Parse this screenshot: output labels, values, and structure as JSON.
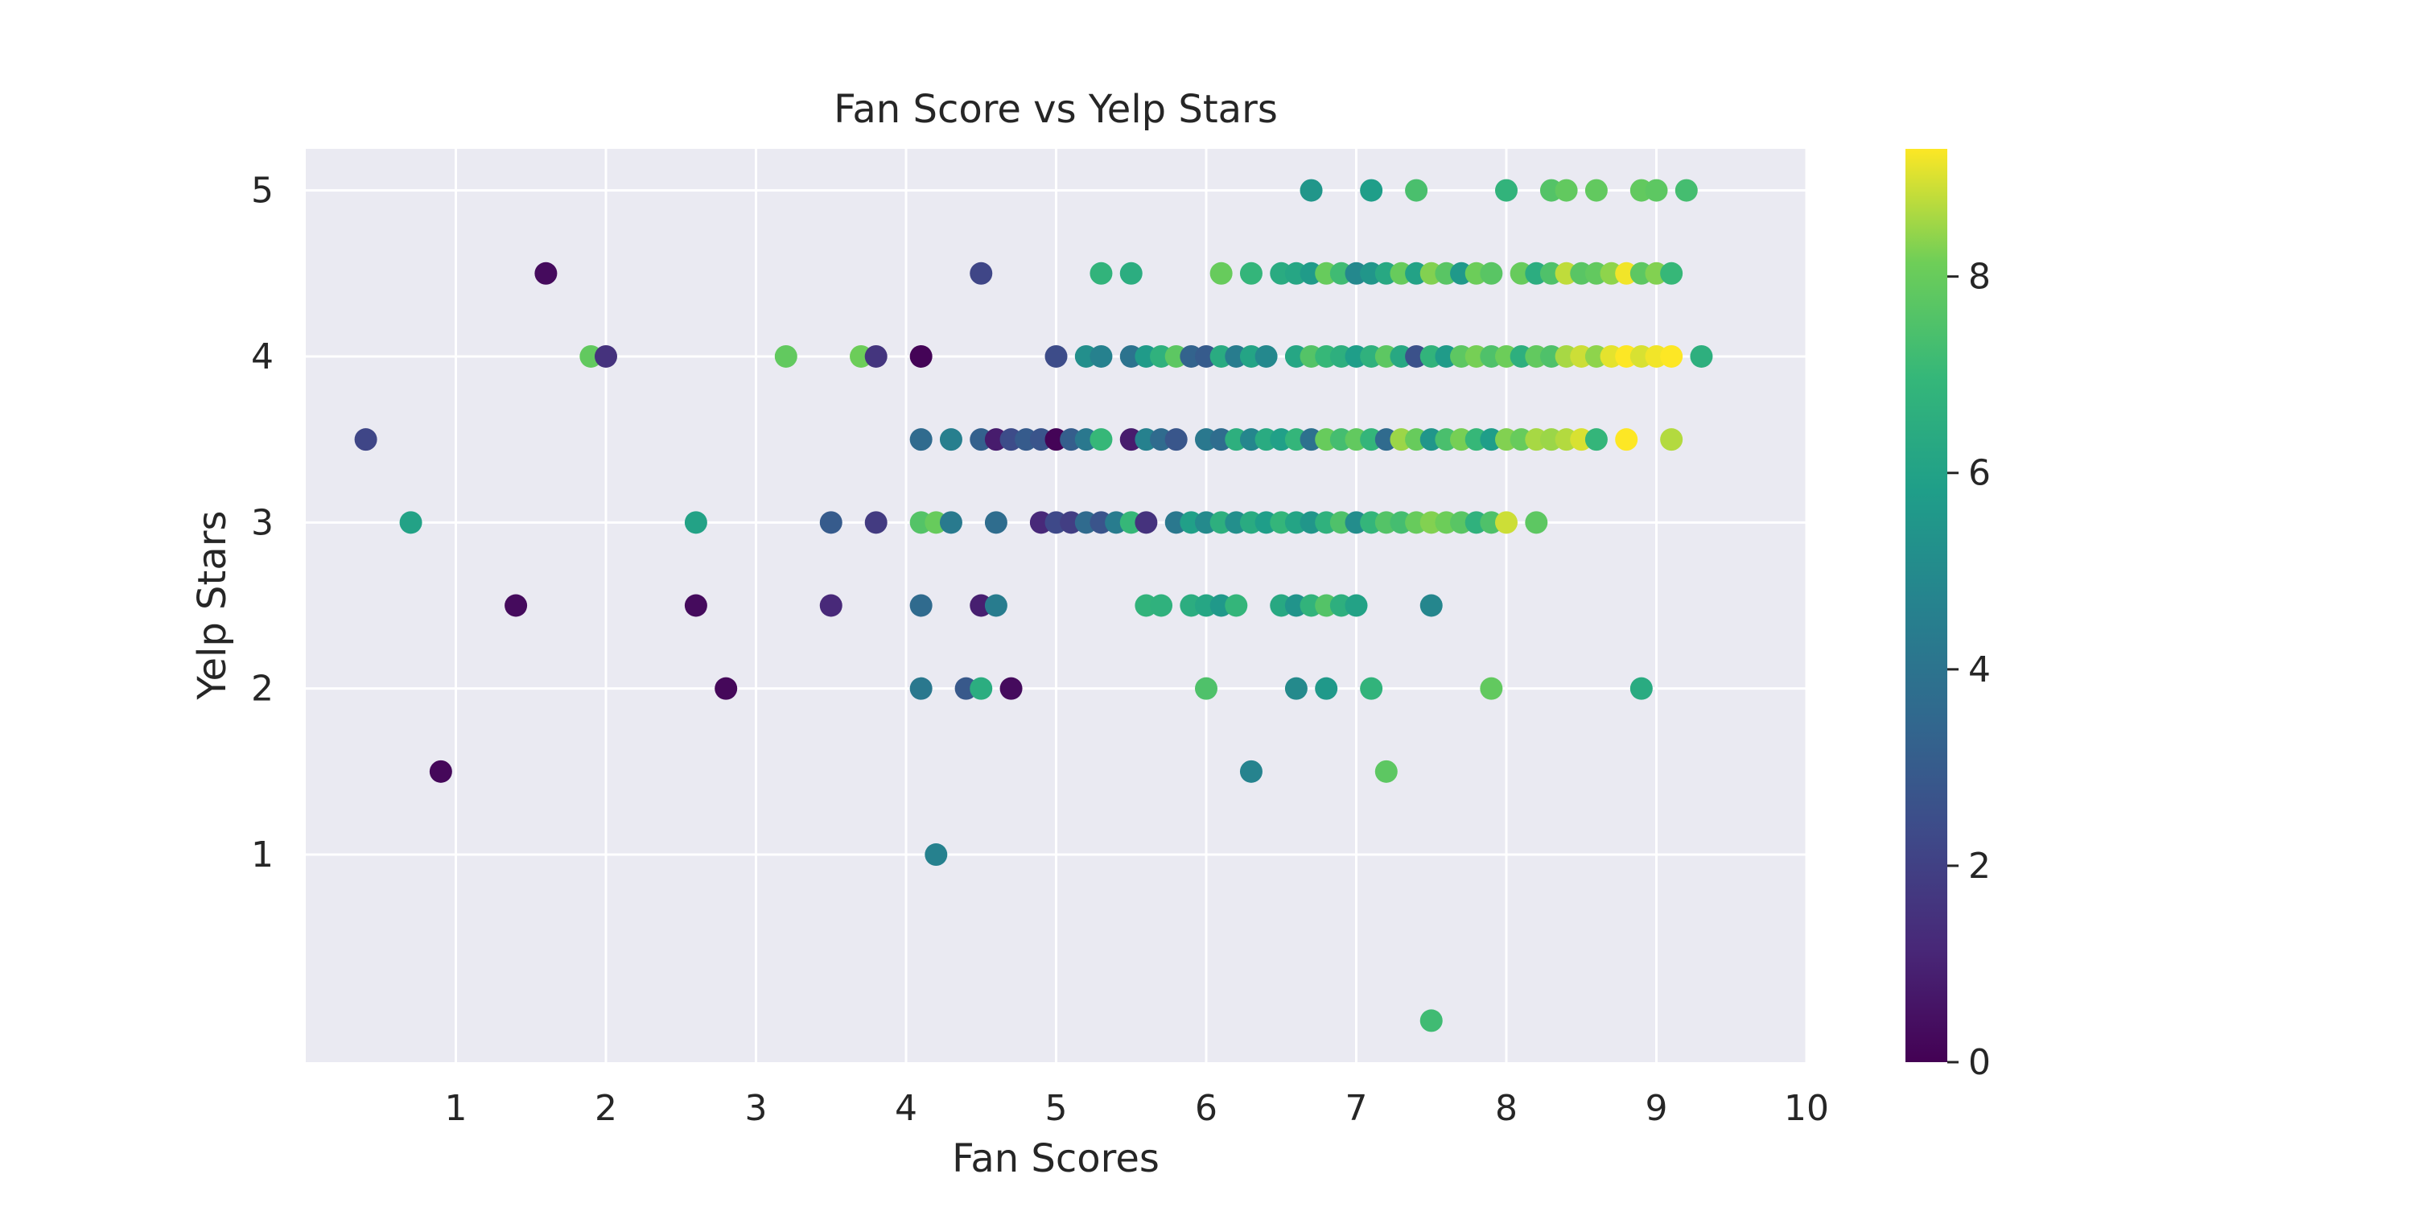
{
  "chart_data": {
    "type": "scatter",
    "title": "Fan Score vs Yelp Stars",
    "xlabel": "Fan Scores",
    "ylabel": "Yelp Stars",
    "xlim": [
      0,
      10
    ],
    "ylim": [
      -0.25,
      5.25
    ],
    "xticks": [
      1,
      2,
      3,
      4,
      5,
      6,
      7,
      8,
      9,
      10
    ],
    "yticks": [
      1,
      2,
      3,
      4,
      5
    ],
    "grid": true,
    "colormap": "viridis",
    "colorbar": {
      "range": [
        0,
        9.3
      ],
      "ticks": [
        0,
        2,
        4,
        6,
        8
      ]
    },
    "points": [
      {
        "x": 6.7,
        "y": 5,
        "c": 5.5
      },
      {
        "x": 7.1,
        "y": 5,
        "c": 5.8
      },
      {
        "x": 7.4,
        "y": 5,
        "c": 7.4
      },
      {
        "x": 8.0,
        "y": 5,
        "c": 6.8
      },
      {
        "x": 8.3,
        "y": 5,
        "c": 7.6
      },
      {
        "x": 8.4,
        "y": 5,
        "c": 7.9
      },
      {
        "x": 8.6,
        "y": 5,
        "c": 7.9
      },
      {
        "x": 8.9,
        "y": 5,
        "c": 7.9
      },
      {
        "x": 9.0,
        "y": 5,
        "c": 7.8
      },
      {
        "x": 9.2,
        "y": 5,
        "c": 7.3
      },
      {
        "x": 1.6,
        "y": 4.5,
        "c": 0.3
      },
      {
        "x": 4.5,
        "y": 4.5,
        "c": 2.2
      },
      {
        "x": 5.3,
        "y": 4.5,
        "c": 6.8
      },
      {
        "x": 5.5,
        "y": 4.5,
        "c": 6.5
      },
      {
        "x": 6.1,
        "y": 4.5,
        "c": 8.0
      },
      {
        "x": 6.3,
        "y": 4.5,
        "c": 6.9
      },
      {
        "x": 6.5,
        "y": 4.5,
        "c": 6.4
      },
      {
        "x": 6.6,
        "y": 4.5,
        "c": 6.2
      },
      {
        "x": 6.7,
        "y": 4.5,
        "c": 5.7
      },
      {
        "x": 6.8,
        "y": 4.5,
        "c": 8.0
      },
      {
        "x": 6.9,
        "y": 4.5,
        "c": 7.2
      },
      {
        "x": 7.0,
        "y": 4.5,
        "c": 4.9
      },
      {
        "x": 7.1,
        "y": 4.5,
        "c": 5.5
      },
      {
        "x": 7.2,
        "y": 4.5,
        "c": 6.3
      },
      {
        "x": 7.3,
        "y": 4.5,
        "c": 8.0
      },
      {
        "x": 7.4,
        "y": 4.5,
        "c": 6.0
      },
      {
        "x": 7.5,
        "y": 4.5,
        "c": 8.3
      },
      {
        "x": 7.6,
        "y": 4.5,
        "c": 7.7
      },
      {
        "x": 7.7,
        "y": 4.5,
        "c": 5.6
      },
      {
        "x": 7.8,
        "y": 4.5,
        "c": 8.1
      },
      {
        "x": 7.9,
        "y": 4.5,
        "c": 7.7
      },
      {
        "x": 8.1,
        "y": 4.5,
        "c": 8.0
      },
      {
        "x": 8.2,
        "y": 4.5,
        "c": 6.5
      },
      {
        "x": 8.3,
        "y": 4.5,
        "c": 7.5
      },
      {
        "x": 8.4,
        "y": 4.5,
        "c": 8.8
      },
      {
        "x": 8.5,
        "y": 4.5,
        "c": 7.7
      },
      {
        "x": 8.6,
        "y": 4.5,
        "c": 7.9
      },
      {
        "x": 8.7,
        "y": 4.5,
        "c": 8.4
      },
      {
        "x": 8.8,
        "y": 4.5,
        "c": 9.2
      },
      {
        "x": 8.9,
        "y": 4.5,
        "c": 7.8
      },
      {
        "x": 9.0,
        "y": 4.5,
        "c": 8.3
      },
      {
        "x": 9.1,
        "y": 4.5,
        "c": 7.0
      },
      {
        "x": 1.9,
        "y": 4,
        "c": 7.9
      },
      {
        "x": 2.0,
        "y": 4,
        "c": 1.5
      },
      {
        "x": 3.2,
        "y": 4,
        "c": 7.9
      },
      {
        "x": 3.7,
        "y": 4,
        "c": 8.1
      },
      {
        "x": 3.8,
        "y": 4,
        "c": 1.6
      },
      {
        "x": 4.1,
        "y": 4,
        "c": 0.1
      },
      {
        "x": 5.0,
        "y": 4,
        "c": 2.4
      },
      {
        "x": 5.2,
        "y": 4,
        "c": 5.2
      },
      {
        "x": 5.3,
        "y": 4,
        "c": 4.6
      },
      {
        "x": 5.5,
        "y": 4,
        "c": 4.0
      },
      {
        "x": 5.6,
        "y": 4,
        "c": 5.7
      },
      {
        "x": 5.7,
        "y": 4,
        "c": 6.7
      },
      {
        "x": 5.8,
        "y": 4,
        "c": 7.8
      },
      {
        "x": 5.9,
        "y": 4,
        "c": 3.3
      },
      {
        "x": 6.0,
        "y": 4,
        "c": 3.0
      },
      {
        "x": 6.1,
        "y": 4,
        "c": 6.4
      },
      {
        "x": 6.2,
        "y": 4,
        "c": 4.4
      },
      {
        "x": 6.3,
        "y": 4,
        "c": 6.1
      },
      {
        "x": 6.4,
        "y": 4,
        "c": 4.9
      },
      {
        "x": 6.6,
        "y": 4,
        "c": 6.2
      },
      {
        "x": 6.7,
        "y": 4,
        "c": 7.6
      },
      {
        "x": 6.8,
        "y": 4,
        "c": 7.0
      },
      {
        "x": 6.9,
        "y": 4,
        "c": 6.6
      },
      {
        "x": 7.0,
        "y": 4,
        "c": 5.8
      },
      {
        "x": 7.1,
        "y": 4,
        "c": 6.7
      },
      {
        "x": 7.2,
        "y": 4,
        "c": 7.8
      },
      {
        "x": 7.3,
        "y": 4,
        "c": 6.3
      },
      {
        "x": 7.4,
        "y": 4,
        "c": 2.6
      },
      {
        "x": 7.5,
        "y": 4,
        "c": 6.8
      },
      {
        "x": 7.6,
        "y": 4,
        "c": 5.7
      },
      {
        "x": 7.7,
        "y": 4,
        "c": 7.8
      },
      {
        "x": 7.8,
        "y": 4,
        "c": 8.2
      },
      {
        "x": 7.9,
        "y": 4,
        "c": 7.5
      },
      {
        "x": 8.0,
        "y": 4,
        "c": 8.1
      },
      {
        "x": 8.1,
        "y": 4,
        "c": 6.6
      },
      {
        "x": 8.2,
        "y": 4,
        "c": 7.9
      },
      {
        "x": 8.3,
        "y": 4,
        "c": 7.5
      },
      {
        "x": 8.4,
        "y": 4,
        "c": 8.6
      },
      {
        "x": 8.5,
        "y": 4,
        "c": 8.9
      },
      {
        "x": 8.6,
        "y": 4,
        "c": 8.4
      },
      {
        "x": 8.7,
        "y": 4,
        "c": 9.1
      },
      {
        "x": 8.8,
        "y": 4,
        "c": 9.3
      },
      {
        "x": 8.9,
        "y": 4,
        "c": 9.0
      },
      {
        "x": 9.0,
        "y": 4,
        "c": 9.2
      },
      {
        "x": 9.1,
        "y": 4,
        "c": 9.3
      },
      {
        "x": 9.3,
        "y": 4,
        "c": 6.6
      },
      {
        "x": 0.4,
        "y": 3.5,
        "c": 2.2
      },
      {
        "x": 4.1,
        "y": 3.5,
        "c": 3.6
      },
      {
        "x": 4.3,
        "y": 3.5,
        "c": 4.5
      },
      {
        "x": 4.5,
        "y": 3.5,
        "c": 3.2
      },
      {
        "x": 4.6,
        "y": 3.5,
        "c": 0.8
      },
      {
        "x": 4.7,
        "y": 3.5,
        "c": 2.4
      },
      {
        "x": 4.8,
        "y": 3.5,
        "c": 3.0
      },
      {
        "x": 4.9,
        "y": 3.5,
        "c": 2.7
      },
      {
        "x": 5.0,
        "y": 3.5,
        "c": 0.1
      },
      {
        "x": 5.1,
        "y": 3.5,
        "c": 3.1
      },
      {
        "x": 5.2,
        "y": 3.5,
        "c": 4.2
      },
      {
        "x": 5.3,
        "y": 3.5,
        "c": 7.0
      },
      {
        "x": 5.5,
        "y": 3.5,
        "c": 0.8
      },
      {
        "x": 5.6,
        "y": 3.5,
        "c": 4.6
      },
      {
        "x": 5.7,
        "y": 3.5,
        "c": 3.6
      },
      {
        "x": 5.8,
        "y": 3.5,
        "c": 2.8
      },
      {
        "x": 6.0,
        "y": 3.5,
        "c": 4.2
      },
      {
        "x": 6.1,
        "y": 3.5,
        "c": 3.7
      },
      {
        "x": 6.2,
        "y": 3.5,
        "c": 6.6
      },
      {
        "x": 6.3,
        "y": 3.5,
        "c": 4.8
      },
      {
        "x": 6.4,
        "y": 3.5,
        "c": 6.4
      },
      {
        "x": 6.5,
        "y": 3.5,
        "c": 5.9
      },
      {
        "x": 6.6,
        "y": 3.5,
        "c": 6.9
      },
      {
        "x": 6.7,
        "y": 3.5,
        "c": 3.9
      },
      {
        "x": 6.8,
        "y": 3.5,
        "c": 8.0
      },
      {
        "x": 6.9,
        "y": 3.5,
        "c": 7.3
      },
      {
        "x": 7.0,
        "y": 3.5,
        "c": 7.9
      },
      {
        "x": 7.1,
        "y": 3.5,
        "c": 6.9
      },
      {
        "x": 7.2,
        "y": 3.5,
        "c": 3.6
      },
      {
        "x": 7.3,
        "y": 3.5,
        "c": 8.5
      },
      {
        "x": 7.4,
        "y": 3.5,
        "c": 8.0
      },
      {
        "x": 7.5,
        "y": 3.5,
        "c": 5.5
      },
      {
        "x": 7.6,
        "y": 3.5,
        "c": 7.4
      },
      {
        "x": 7.7,
        "y": 3.5,
        "c": 8.2
      },
      {
        "x": 7.8,
        "y": 3.5,
        "c": 7.0
      },
      {
        "x": 7.9,
        "y": 3.5,
        "c": 5.8
      },
      {
        "x": 8.0,
        "y": 3.5,
        "c": 8.3
      },
      {
        "x": 8.1,
        "y": 3.5,
        "c": 8.0
      },
      {
        "x": 8.2,
        "y": 3.5,
        "c": 8.6
      },
      {
        "x": 8.3,
        "y": 3.5,
        "c": 8.5
      },
      {
        "x": 8.4,
        "y": 3.5,
        "c": 8.7
      },
      {
        "x": 8.5,
        "y": 3.5,
        "c": 9.0
      },
      {
        "x": 8.6,
        "y": 3.5,
        "c": 6.9
      },
      {
        "x": 8.8,
        "y": 3.5,
        "c": 9.3
      },
      {
        "x": 9.1,
        "y": 3.5,
        "c": 8.7
      },
      {
        "x": 0.7,
        "y": 3,
        "c": 6.0
      },
      {
        "x": 2.6,
        "y": 3,
        "c": 6.0
      },
      {
        "x": 3.5,
        "y": 3,
        "c": 3.0
      },
      {
        "x": 3.8,
        "y": 3,
        "c": 1.8
      },
      {
        "x": 4.1,
        "y": 3,
        "c": 7.6
      },
      {
        "x": 4.2,
        "y": 3,
        "c": 8.0
      },
      {
        "x": 4.3,
        "y": 3,
        "c": 4.3
      },
      {
        "x": 4.6,
        "y": 3,
        "c": 3.7
      },
      {
        "x": 4.9,
        "y": 3,
        "c": 1.2
      },
      {
        "x": 5.0,
        "y": 3,
        "c": 2.3
      },
      {
        "x": 5.1,
        "y": 3,
        "c": 1.9
      },
      {
        "x": 5.2,
        "y": 3,
        "c": 3.6
      },
      {
        "x": 5.3,
        "y": 3,
        "c": 2.7
      },
      {
        "x": 5.4,
        "y": 3,
        "c": 4.4
      },
      {
        "x": 5.5,
        "y": 3,
        "c": 7.0
      },
      {
        "x": 5.6,
        "y": 3,
        "c": 1.5
      },
      {
        "x": 5.8,
        "y": 3,
        "c": 4.2
      },
      {
        "x": 5.9,
        "y": 3,
        "c": 5.9
      },
      {
        "x": 6.0,
        "y": 3,
        "c": 5.0
      },
      {
        "x": 6.1,
        "y": 3,
        "c": 6.6
      },
      {
        "x": 6.2,
        "y": 3,
        "c": 5.2
      },
      {
        "x": 6.3,
        "y": 3,
        "c": 6.4
      },
      {
        "x": 6.4,
        "y": 3,
        "c": 5.8
      },
      {
        "x": 6.5,
        "y": 3,
        "c": 6.9
      },
      {
        "x": 6.6,
        "y": 3,
        "c": 6.1
      },
      {
        "x": 6.7,
        "y": 3,
        "c": 5.5
      },
      {
        "x": 6.8,
        "y": 3,
        "c": 6.7
      },
      {
        "x": 6.9,
        "y": 3,
        "c": 7.5
      },
      {
        "x": 7.0,
        "y": 3,
        "c": 5.1
      },
      {
        "x": 7.1,
        "y": 3,
        "c": 6.9
      },
      {
        "x": 7.2,
        "y": 3,
        "c": 7.6
      },
      {
        "x": 7.3,
        "y": 3,
        "c": 7.3
      },
      {
        "x": 7.4,
        "y": 3,
        "c": 8.0
      },
      {
        "x": 7.5,
        "y": 3,
        "c": 8.3
      },
      {
        "x": 7.6,
        "y": 3,
        "c": 8.1
      },
      {
        "x": 7.7,
        "y": 3,
        "c": 7.7
      },
      {
        "x": 7.8,
        "y": 3,
        "c": 6.7
      },
      {
        "x": 7.9,
        "y": 3,
        "c": 7.5
      },
      {
        "x": 8.0,
        "y": 3,
        "c": 8.9
      },
      {
        "x": 8.2,
        "y": 3,
        "c": 7.8
      },
      {
        "x": 1.4,
        "y": 2.5,
        "c": 0.3
      },
      {
        "x": 2.6,
        "y": 2.5,
        "c": 0.3
      },
      {
        "x": 3.5,
        "y": 2.5,
        "c": 1.2
      },
      {
        "x": 4.1,
        "y": 2.5,
        "c": 3.6
      },
      {
        "x": 4.5,
        "y": 2.5,
        "c": 0.9
      },
      {
        "x": 4.6,
        "y": 2.5,
        "c": 4.4
      },
      {
        "x": 5.6,
        "y": 2.5,
        "c": 6.8
      },
      {
        "x": 5.7,
        "y": 2.5,
        "c": 6.7
      },
      {
        "x": 5.9,
        "y": 2.5,
        "c": 6.5
      },
      {
        "x": 6.0,
        "y": 2.5,
        "c": 6.2
      },
      {
        "x": 6.1,
        "y": 2.5,
        "c": 5.6
      },
      {
        "x": 6.2,
        "y": 2.5,
        "c": 6.9
      },
      {
        "x": 6.5,
        "y": 2.5,
        "c": 6.3
      },
      {
        "x": 6.6,
        "y": 2.5,
        "c": 5.4
      },
      {
        "x": 6.7,
        "y": 2.5,
        "c": 6.8
      },
      {
        "x": 6.8,
        "y": 2.5,
        "c": 7.6
      },
      {
        "x": 6.9,
        "y": 2.5,
        "c": 6.6
      },
      {
        "x": 7.0,
        "y": 2.5,
        "c": 6.0
      },
      {
        "x": 7.5,
        "y": 2.5,
        "c": 4.8
      },
      {
        "x": 2.8,
        "y": 2,
        "c": 0.2
      },
      {
        "x": 4.1,
        "y": 2,
        "c": 4.2
      },
      {
        "x": 4.4,
        "y": 2,
        "c": 2.9
      },
      {
        "x": 4.5,
        "y": 2,
        "c": 6.5
      },
      {
        "x": 4.7,
        "y": 2,
        "c": 0.3
      },
      {
        "x": 6.0,
        "y": 2,
        "c": 7.5
      },
      {
        "x": 6.6,
        "y": 2,
        "c": 5.0
      },
      {
        "x": 6.8,
        "y": 2,
        "c": 5.6
      },
      {
        "x": 7.1,
        "y": 2,
        "c": 6.8
      },
      {
        "x": 7.9,
        "y": 2,
        "c": 7.9
      },
      {
        "x": 8.9,
        "y": 2,
        "c": 6.4
      },
      {
        "x": 0.9,
        "y": 1.5,
        "c": 0.2
      },
      {
        "x": 6.3,
        "y": 1.5,
        "c": 4.7
      },
      {
        "x": 7.2,
        "y": 1.5,
        "c": 7.8
      },
      {
        "x": 4.2,
        "y": 1,
        "c": 4.6
      },
      {
        "x": 7.5,
        "y": 0,
        "c": 7.2
      }
    ]
  }
}
